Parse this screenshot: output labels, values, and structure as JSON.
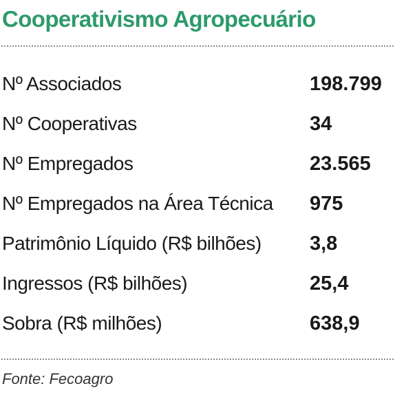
{
  "title": "Cooperativismo Agropecuário",
  "rows": [
    {
      "label": "Nº Associados",
      "value": "198.799"
    },
    {
      "label": "Nº Cooperativas",
      "value": "34"
    },
    {
      "label": "Nº Empregados",
      "value": "23.565"
    },
    {
      "label": "Nº Empregados na Área Técnica",
      "value": "975"
    },
    {
      "label": "Patrimônio Líquido (R$ bilhões)",
      "value": "3,8"
    },
    {
      "label": "Ingressos (R$ bilhões)",
      "value": "25,4"
    },
    {
      "label": "Sobra (R$ milhões)",
      "value": "638,9"
    }
  ],
  "source": "Fonte: Fecoagro",
  "colors": {
    "title": "#2e9a6b",
    "text": "#1a1a1a",
    "divider": "#8a8a8a"
  }
}
